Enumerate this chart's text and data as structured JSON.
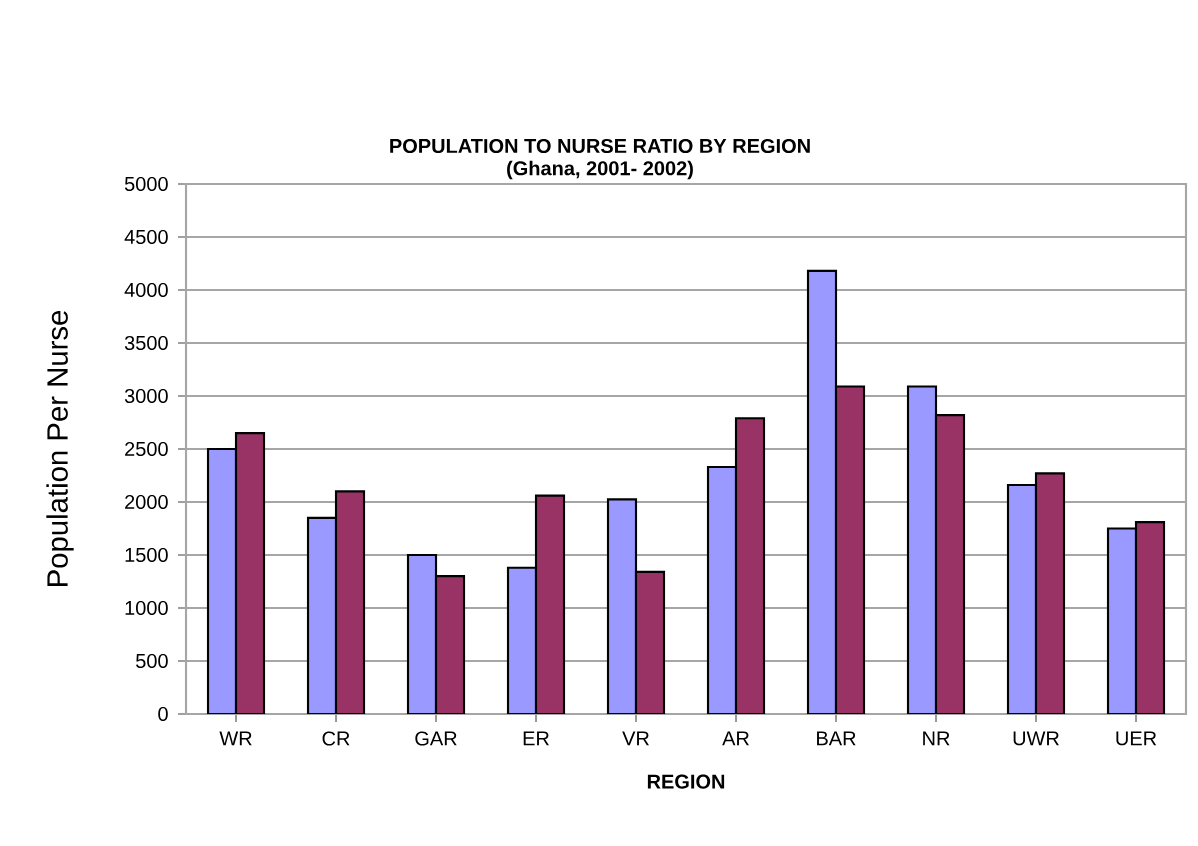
{
  "chart_data": {
    "type": "bar",
    "title": "POPULATION TO NURSE RATIO BY REGION",
    "subtitle": "(Ghana, 2001- 2002)",
    "xlabel": "REGION",
    "ylabel": "Population Per Nurse",
    "categories": [
      "WR",
      "CR",
      "GAR",
      "ER",
      "VR",
      "AR",
      "BAR",
      "NR",
      "UWR",
      "UER"
    ],
    "series": [
      {
        "color": "#9999ff",
        "values": [
          2500,
          1850,
          1500,
          1380,
          2025,
          2330,
          4180,
          3090,
          2160,
          1750
        ]
      },
      {
        "color": "#993366",
        "values": [
          2650,
          2100,
          1300,
          2060,
          1340,
          2790,
          3090,
          2820,
          2270,
          1810
        ]
      }
    ],
    "ylim": [
      0,
      5000
    ],
    "yticks": [
      0,
      500,
      1000,
      1500,
      2000,
      2500,
      3000,
      3500,
      4000,
      4500,
      5000
    ],
    "grid": "y"
  }
}
